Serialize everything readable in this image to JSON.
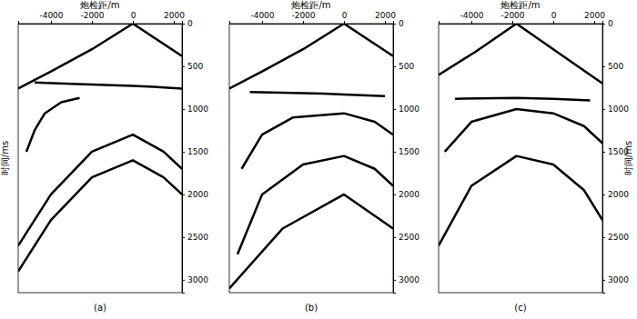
{
  "chart_data": [
    {
      "type": "line",
      "title": "(a)",
      "x_label": "炮检距/m",
      "y_label": "时间/ms",
      "xlim": [
        -5600,
        2400
      ],
      "ylim": [
        0,
        3150
      ],
      "xticks": [
        -4000,
        -2000,
        0,
        2000
      ],
      "yticks": [
        0,
        500,
        1000,
        1500,
        2000,
        2500,
        3000
      ],
      "series": [
        {
          "color": "#000000",
          "x": [
            0,
            -2000,
            -4000,
            -5600
          ],
          "values": [
            0,
            300,
            560,
            760
          ]
        },
        {
          "color": "#000000",
          "x": [
            0,
            2400
          ],
          "values": [
            0,
            380
          ]
        },
        {
          "color": "#000000",
          "x": [
            -4800,
            -3000,
            -1000,
            0,
            1000,
            2400
          ],
          "values": [
            690,
            705,
            720,
            730,
            740,
            760
          ]
        },
        {
          "color": "#000000",
          "x": [
            -2600,
            -3500,
            -4300,
            -4800,
            -5200
          ],
          "values": [
            870,
            920,
            1050,
            1250,
            1500
          ]
        },
        {
          "color": "#000000",
          "x": [
            -5600,
            -4000,
            -2000,
            0,
            1500,
            2400
          ],
          "values": [
            2600,
            2000,
            1500,
            1300,
            1500,
            1700
          ]
        },
        {
          "color": "#000000",
          "x": [
            -5600,
            -4000,
            -2000,
            0,
            1500,
            2400
          ],
          "values": [
            2900,
            2300,
            1800,
            1600,
            1800,
            2000
          ]
        }
      ]
    },
    {
      "type": "line",
      "title": "(b)",
      "x_label": "炮检距/m",
      "xlim": [
        -5600,
        2400
      ],
      "ylim": [
        0,
        3150
      ],
      "xticks": [
        -4000,
        -2000,
        0,
        2000
      ],
      "yticks": [
        0,
        500,
        1000,
        1500,
        2000,
        2500,
        3000
      ],
      "series": [
        {
          "color": "#000000",
          "x": [
            0,
            -2000,
            -4000,
            -5600
          ],
          "values": [
            0,
            300,
            560,
            760
          ]
        },
        {
          "color": "#000000",
          "x": [
            0,
            2400
          ],
          "values": [
            0,
            380
          ]
        },
        {
          "color": "#000000",
          "x": [
            -4600,
            -3000,
            -1000,
            0,
            2000
          ],
          "values": [
            800,
            810,
            820,
            830,
            850
          ]
        },
        {
          "color": "#000000",
          "x": [
            -5000,
            -4000,
            -2500,
            0,
            1500,
            2400
          ],
          "values": [
            1700,
            1300,
            1100,
            1050,
            1150,
            1300
          ]
        },
        {
          "color": "#000000",
          "x": [
            -5200,
            -4000,
            -2000,
            0,
            1500,
            2400
          ],
          "values": [
            2700,
            2000,
            1650,
            1550,
            1700,
            1900
          ]
        },
        {
          "color": "#000000",
          "x": [
            -5600,
            -3000,
            0,
            2400
          ],
          "values": [
            3100,
            2400,
            2000,
            2400
          ]
        }
      ]
    },
    {
      "type": "line",
      "title": "(c)",
      "x_label": "炮检距/m",
      "y_label": "时间/ms",
      "xlim": [
        -5600,
        2400
      ],
      "ylim": [
        0,
        3150
      ],
      "xticks": [
        -4000,
        -2000,
        0,
        2000
      ],
      "yticks": [
        0,
        500,
        1000,
        1500,
        2000,
        2500,
        3000
      ],
      "series": [
        {
          "color": "#000000",
          "x": [
            -1800,
            -3800,
            -5600
          ],
          "values": [
            0,
            330,
            600
          ]
        },
        {
          "color": "#000000",
          "x": [
            -1800,
            0,
            2400
          ],
          "values": [
            0,
            300,
            700
          ]
        },
        {
          "color": "#000000",
          "x": [
            -4800,
            -1800,
            0,
            1800
          ],
          "values": [
            880,
            870,
            880,
            900
          ]
        },
        {
          "color": "#000000",
          "x": [
            -5300,
            -4000,
            -1800,
            0,
            1500,
            2400
          ],
          "values": [
            1500,
            1150,
            1000,
            1050,
            1200,
            1400
          ]
        },
        {
          "color": "#000000",
          "x": [
            -5600,
            -4000,
            -1800,
            0,
            1500,
            2400
          ],
          "values": [
            2600,
            1900,
            1550,
            1650,
            1950,
            2300
          ]
        }
      ]
    }
  ]
}
